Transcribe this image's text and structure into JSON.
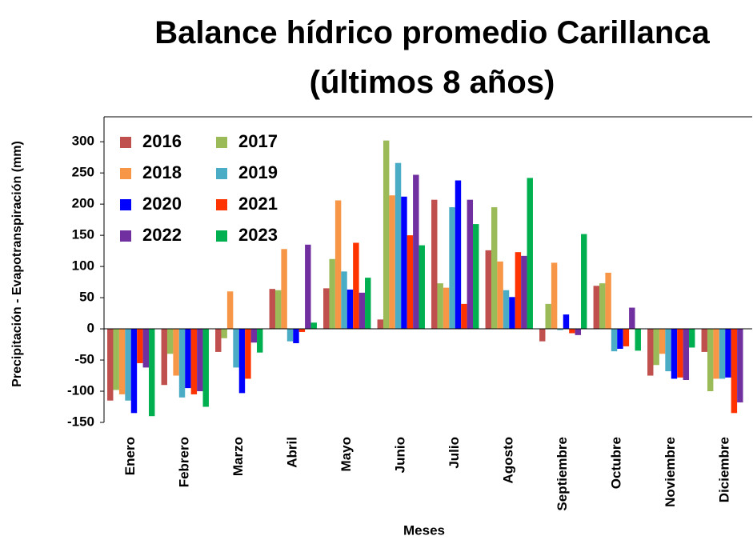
{
  "chart_data": {
    "type": "bar",
    "title": "Balance hídrico promedio Carillanca (últimos 8 años)",
    "x_label": "Meses",
    "y_label": "Precipitación - Evapotranspiración (mm)",
    "categories": [
      "Enero",
      "Febrero",
      "Marzo",
      "Abril",
      "Mayo",
      "Junio",
      "Julio",
      "Agosto",
      "Septiembre",
      "Octubre",
      "Noviembre",
      "Diciembre"
    ],
    "series": [
      {
        "name": "2016",
        "color": "#c0504d",
        "values": [
          -115,
          -90,
          -37,
          64,
          65,
          15,
          207,
          126,
          -20,
          69,
          -75,
          -37
        ]
      },
      {
        "name": "2017",
        "color": "#9bbb59",
        "values": [
          -98,
          -40,
          -15,
          62,
          112,
          302,
          73,
          195,
          40,
          73,
          -58,
          -100
        ]
      },
      {
        "name": "2018",
        "color": "#f79646",
        "values": [
          -105,
          -75,
          60,
          128,
          206,
          214,
          66,
          108,
          106,
          90,
          -40,
          -80
        ]
      },
      {
        "name": "2019",
        "color": "#4bacc6",
        "values": [
          -115,
          -110,
          -62,
          -20,
          92,
          266,
          195,
          62,
          -2,
          -36,
          -68,
          -80
        ]
      },
      {
        "name": "2020",
        "color": "#0000ff",
        "values": [
          -135,
          -95,
          -103,
          -23,
          63,
          212,
          238,
          51,
          23,
          -32,
          -80,
          -78
        ]
      },
      {
        "name": "2021",
        "color": "#ff3300",
        "values": [
          -55,
          -105,
          -80,
          -5,
          138,
          150,
          40,
          123,
          -7,
          -28,
          -78,
          -135
        ]
      },
      {
        "name": "2022",
        "color": "#7030a0",
        "values": [
          -62,
          -100,
          -22,
          135,
          58,
          247,
          207,
          117,
          -10,
          34,
          -82,
          -118
        ]
      },
      {
        "name": "2023",
        "color": "#00b050",
        "values": [
          -140,
          -125,
          -38,
          10,
          82,
          134,
          168,
          242,
          152,
          -35,
          -30,
          null
        ]
      }
    ],
    "ylim": [
      -150,
      340
    ],
    "yticks": [
      -150,
      -100,
      -50,
      0,
      50,
      100,
      150,
      200,
      250,
      300
    ],
    "legend": "upper-left"
  }
}
